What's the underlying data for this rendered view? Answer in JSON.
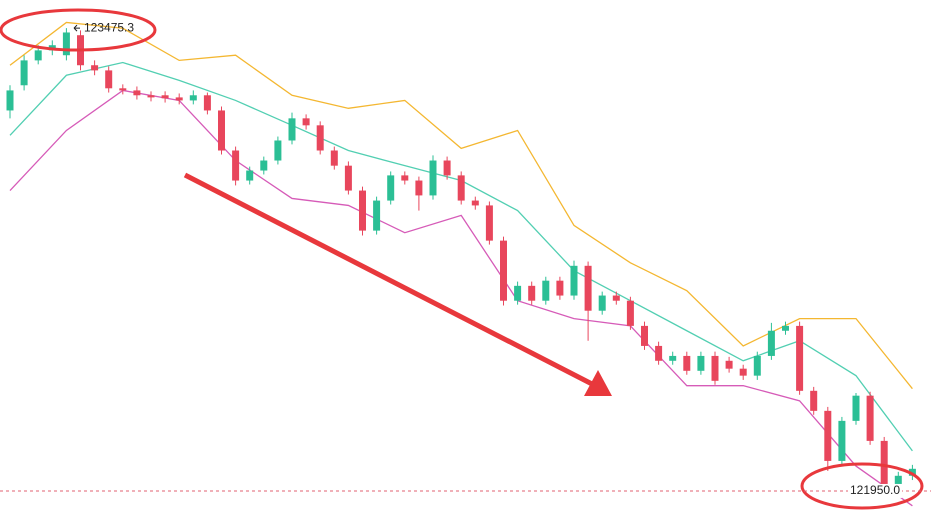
{
  "chart_data": {
    "type": "candlestick",
    "ylim": [
      121851,
      123568
    ],
    "up_color": "#2bbf95",
    "down_color": "#e8465c",
    "candles": {
      "open": [
        123204,
        123287,
        123369,
        123402,
        123386,
        123452,
        123353,
        123336,
        123277,
        123270,
        123254,
        123254,
        123247,
        123237,
        123254,
        123204,
        123072,
        122973,
        123006,
        123039,
        123105,
        123178,
        123155,
        123072,
        123022,
        122940,
        122808,
        122907,
        122990,
        122973,
        122924,
        123039,
        122990,
        122907,
        122891,
        122775,
        122577,
        122626,
        122577,
        122643,
        122594,
        122692,
        122544,
        122594,
        122577,
        122494,
        122428,
        122379,
        122395,
        122346,
        122395,
        122379,
        122353,
        122330,
        122395,
        122478,
        122494,
        122280,
        122214,
        122049,
        122181,
        122264,
        122115,
        121967,
        122000
      ],
      "high": [
        123287,
        123386,
        123419,
        123435,
        123475.3,
        123468,
        123369,
        123349,
        123290,
        123283,
        123267,
        123267,
        123260,
        123270,
        123263,
        123217,
        123085,
        123019,
        123052,
        123118,
        123197,
        123191,
        123168,
        123085,
        123036,
        122953,
        122920,
        123003,
        123003,
        122986,
        123056,
        123052,
        123003,
        122920,
        122904,
        122788,
        122640,
        122640,
        122656,
        122656,
        122709,
        122706,
        122607,
        122607,
        122590,
        122508,
        122442,
        122409,
        122409,
        122409,
        122409,
        122392,
        122366,
        122409,
        122504,
        122508,
        122508,
        122293,
        122227,
        122194,
        122273,
        122277,
        122128,
        122013,
        122036
      ],
      "low": [
        123178,
        123270,
        123356,
        123386,
        123369,
        123336,
        123320,
        123263,
        123257,
        123240,
        123234,
        123230,
        123224,
        123224,
        123191,
        123059,
        122957,
        122960,
        122993,
        123026,
        123092,
        123141,
        123059,
        123009,
        122927,
        122792,
        122795,
        122894,
        122960,
        122874,
        122910,
        122976,
        122894,
        122877,
        122762,
        122561,
        122564,
        122564,
        122564,
        122580,
        122580,
        122445,
        122531,
        122564,
        122481,
        122415,
        122366,
        122366,
        122333,
        122333,
        122300,
        122340,
        122316,
        122316,
        122382,
        122465,
        122267,
        122201,
        122016,
        122036,
        122168,
        122102,
        121950.0,
        121953,
        121986
      ],
      "close": [
        123270,
        123369,
        123402,
        123419,
        123461,
        123353,
        123336,
        123277,
        123270,
        123254,
        123247,
        123244,
        123237,
        123254,
        123204,
        123072,
        122973,
        123006,
        123039,
        123105,
        123178,
        123155,
        123072,
        123022,
        122940,
        122808,
        122907,
        122990,
        122973,
        122924,
        123039,
        122990,
        122907,
        122891,
        122775,
        122577,
        122626,
        122577,
        122643,
        122594,
        122692,
        122544,
        122594,
        122577,
        122494,
        122428,
        122379,
        122395,
        122346,
        122395,
        122313,
        122353,
        122330,
        122395,
        122478,
        122494,
        122280,
        122214,
        122049,
        122181,
        122264,
        122115,
        121967,
        122000,
        122023
      ]
    },
    "bands": [
      {
        "color": "#f4b731",
        "x": [
          0,
          4,
          8,
          12,
          16,
          20,
          24,
          28,
          32,
          36,
          40,
          44,
          48,
          52,
          56,
          60,
          64
        ],
        "values": [
          123353,
          123494,
          123475,
          123369,
          123386,
          123254,
          123211,
          123237,
          123079,
          123138,
          122825,
          122702,
          122610,
          122428,
          122518,
          122518,
          122287
        ]
      },
      {
        "color": "#52cfb2",
        "x": [
          0,
          4,
          8,
          12,
          16,
          20,
          24,
          28,
          32,
          36,
          40,
          44,
          48,
          52,
          56,
          60,
          64
        ],
        "values": [
          123122,
          123320,
          123362,
          123303,
          123237,
          123155,
          123072,
          123022,
          122973,
          122874,
          122676,
          122577,
          122478,
          122379,
          122445,
          122330,
          122082
        ]
      },
      {
        "color": "#d65bb8",
        "x": [
          0,
          4,
          8,
          12,
          16,
          20,
          24,
          28,
          32,
          36,
          40,
          44,
          48,
          52,
          56,
          60,
          64
        ],
        "values": [
          122940,
          123138,
          123270,
          123237,
          123039,
          122914,
          122891,
          122801,
          122858,
          122577,
          122518,
          122494,
          122297,
          122297,
          122247,
          122032,
          121901
        ]
      }
    ],
    "high_label": 123475.3,
    "low_line": {
      "value": 121950,
      "label": "121950.0",
      "color": "#e06070"
    }
  }
}
